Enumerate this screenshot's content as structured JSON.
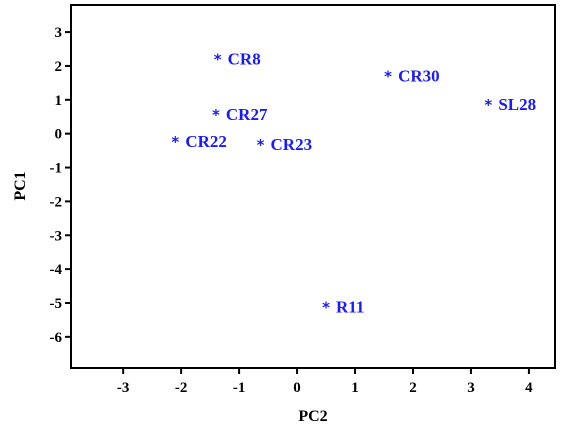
{
  "chart_data": {
    "type": "scatter",
    "xlabel": "PC2",
    "ylabel": "PC1",
    "xlim": [
      -3.9,
      4.45
    ],
    "ylim": [
      -6.92,
      3.8
    ],
    "xticks": [
      -3,
      -2,
      -1,
      0,
      1,
      2,
      3,
      4
    ],
    "yticks": [
      3,
      2,
      1,
      0,
      -1,
      -2,
      -3,
      -4,
      -5,
      -6
    ],
    "xtick_labels": [
      "-3",
      "-2",
      "-1",
      "0",
      "1",
      "2",
      "3",
      "4"
    ],
    "ytick_labels": [
      "3",
      "2",
      "1",
      "0",
      "-1",
      "-2",
      "-3",
      "-4",
      "-5",
      "-6"
    ],
    "grid": false,
    "point_color": "#1a1aff",
    "marker": "*",
    "points": [
      {
        "label": "CR8",
        "x": -1.37,
        "y": 2.22
      },
      {
        "label": "CR30",
        "x": 1.57,
        "y": 1.72
      },
      {
        "label": "SL28",
        "x": 3.3,
        "y": 0.88
      },
      {
        "label": "CR27",
        "x": -1.4,
        "y": 0.58
      },
      {
        "label": "CR22",
        "x": -2.1,
        "y": -0.22
      },
      {
        "label": "CR23",
        "x": -0.63,
        "y": -0.3
      },
      {
        "label": "R11",
        "x": 0.5,
        "y": -5.1
      }
    ]
  }
}
